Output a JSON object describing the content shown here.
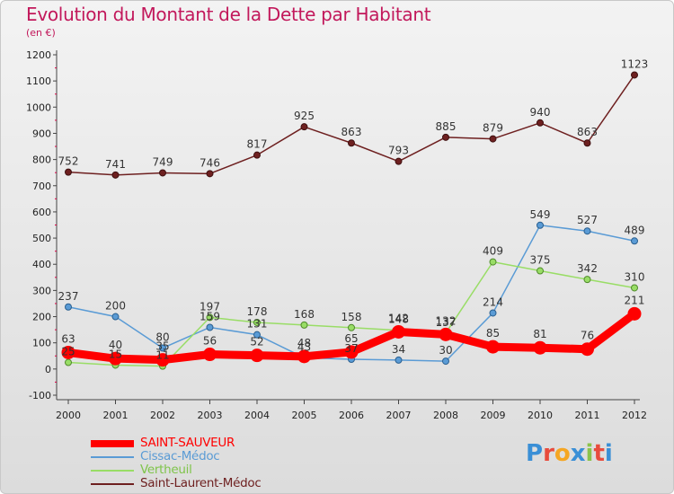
{
  "title": "Evolution du Montant de la Dette par Habitant",
  "subtitle": "(en €)",
  "logo": {
    "text": "Proxiti",
    "colors": [
      "#3a8fd6",
      "#e84c3d",
      "#f5a623",
      "#3a8fd6",
      "#8bc34a",
      "#e84c3d",
      "#3a8fd6"
    ]
  },
  "chart_data": {
    "type": "line",
    "title": "Evolution du Montant de la Dette par Habitant",
    "subtitle": "(en €)",
    "xlabel": "",
    "ylabel": "",
    "ylim": [
      -100,
      1200
    ],
    "yticks": [
      -100,
      0,
      100,
      200,
      300,
      400,
      500,
      600,
      700,
      800,
      900,
      1000,
      1100,
      1200
    ],
    "grid": false,
    "legend_position": "bottom-left",
    "categories": [
      "2000",
      "2001",
      "2002",
      "2003",
      "2004",
      "2005",
      "2006",
      "2007",
      "2008",
      "2009",
      "2010",
      "2011",
      "2012"
    ],
    "series": [
      {
        "name": "SAINT-SAUVEUR",
        "color": "#ff0000",
        "values": [
          63,
          40,
          35,
          56,
          52,
          48,
          65,
          142,
          132,
          85,
          81,
          76,
          211
        ]
      },
      {
        "name": "Cissac-Médoc",
        "color": "#5a9bd5",
        "values": [
          237,
          200,
          80,
          159,
          131,
          43,
          37,
          34,
          30,
          214,
          549,
          527,
          489
        ]
      },
      {
        "name": "Vertheuil",
        "color": "#99dd66",
        "values": [
          25,
          15,
          11,
          197,
          178,
          168,
          158,
          148,
          137,
          409,
          375,
          342,
          310
        ]
      },
      {
        "name": "Saint-Laurent-Médoc",
        "color": "#6e2020",
        "values": [
          752,
          741,
          749,
          746,
          817,
          925,
          863,
          793,
          885,
          879,
          940,
          863,
          1123
        ]
      }
    ],
    "data_labels": [
      {
        "series": 3,
        "labels": [
          "752",
          "741",
          "749",
          "746",
          "817",
          "925",
          "863",
          "793",
          "885",
          "879",
          "940",
          "863",
          "1123"
        ]
      },
      {
        "series": 1,
        "labels": [
          "237",
          "200",
          "80",
          "159",
          "131",
          "43",
          "37",
          "34",
          "30",
          "214",
          "549",
          "527",
          "489"
        ]
      },
      {
        "series": 2,
        "labels": [
          "25",
          "15",
          "11",
          "197",
          "178",
          "168",
          "158",
          "148",
          "137",
          "409",
          "375",
          "342",
          "310"
        ]
      },
      {
        "series": 0,
        "labels": [
          "63",
          "40",
          "35",
          "56",
          "52",
          "48",
          "65",
          "142",
          "132",
          "85",
          "81",
          "76",
          "211"
        ]
      }
    ]
  }
}
